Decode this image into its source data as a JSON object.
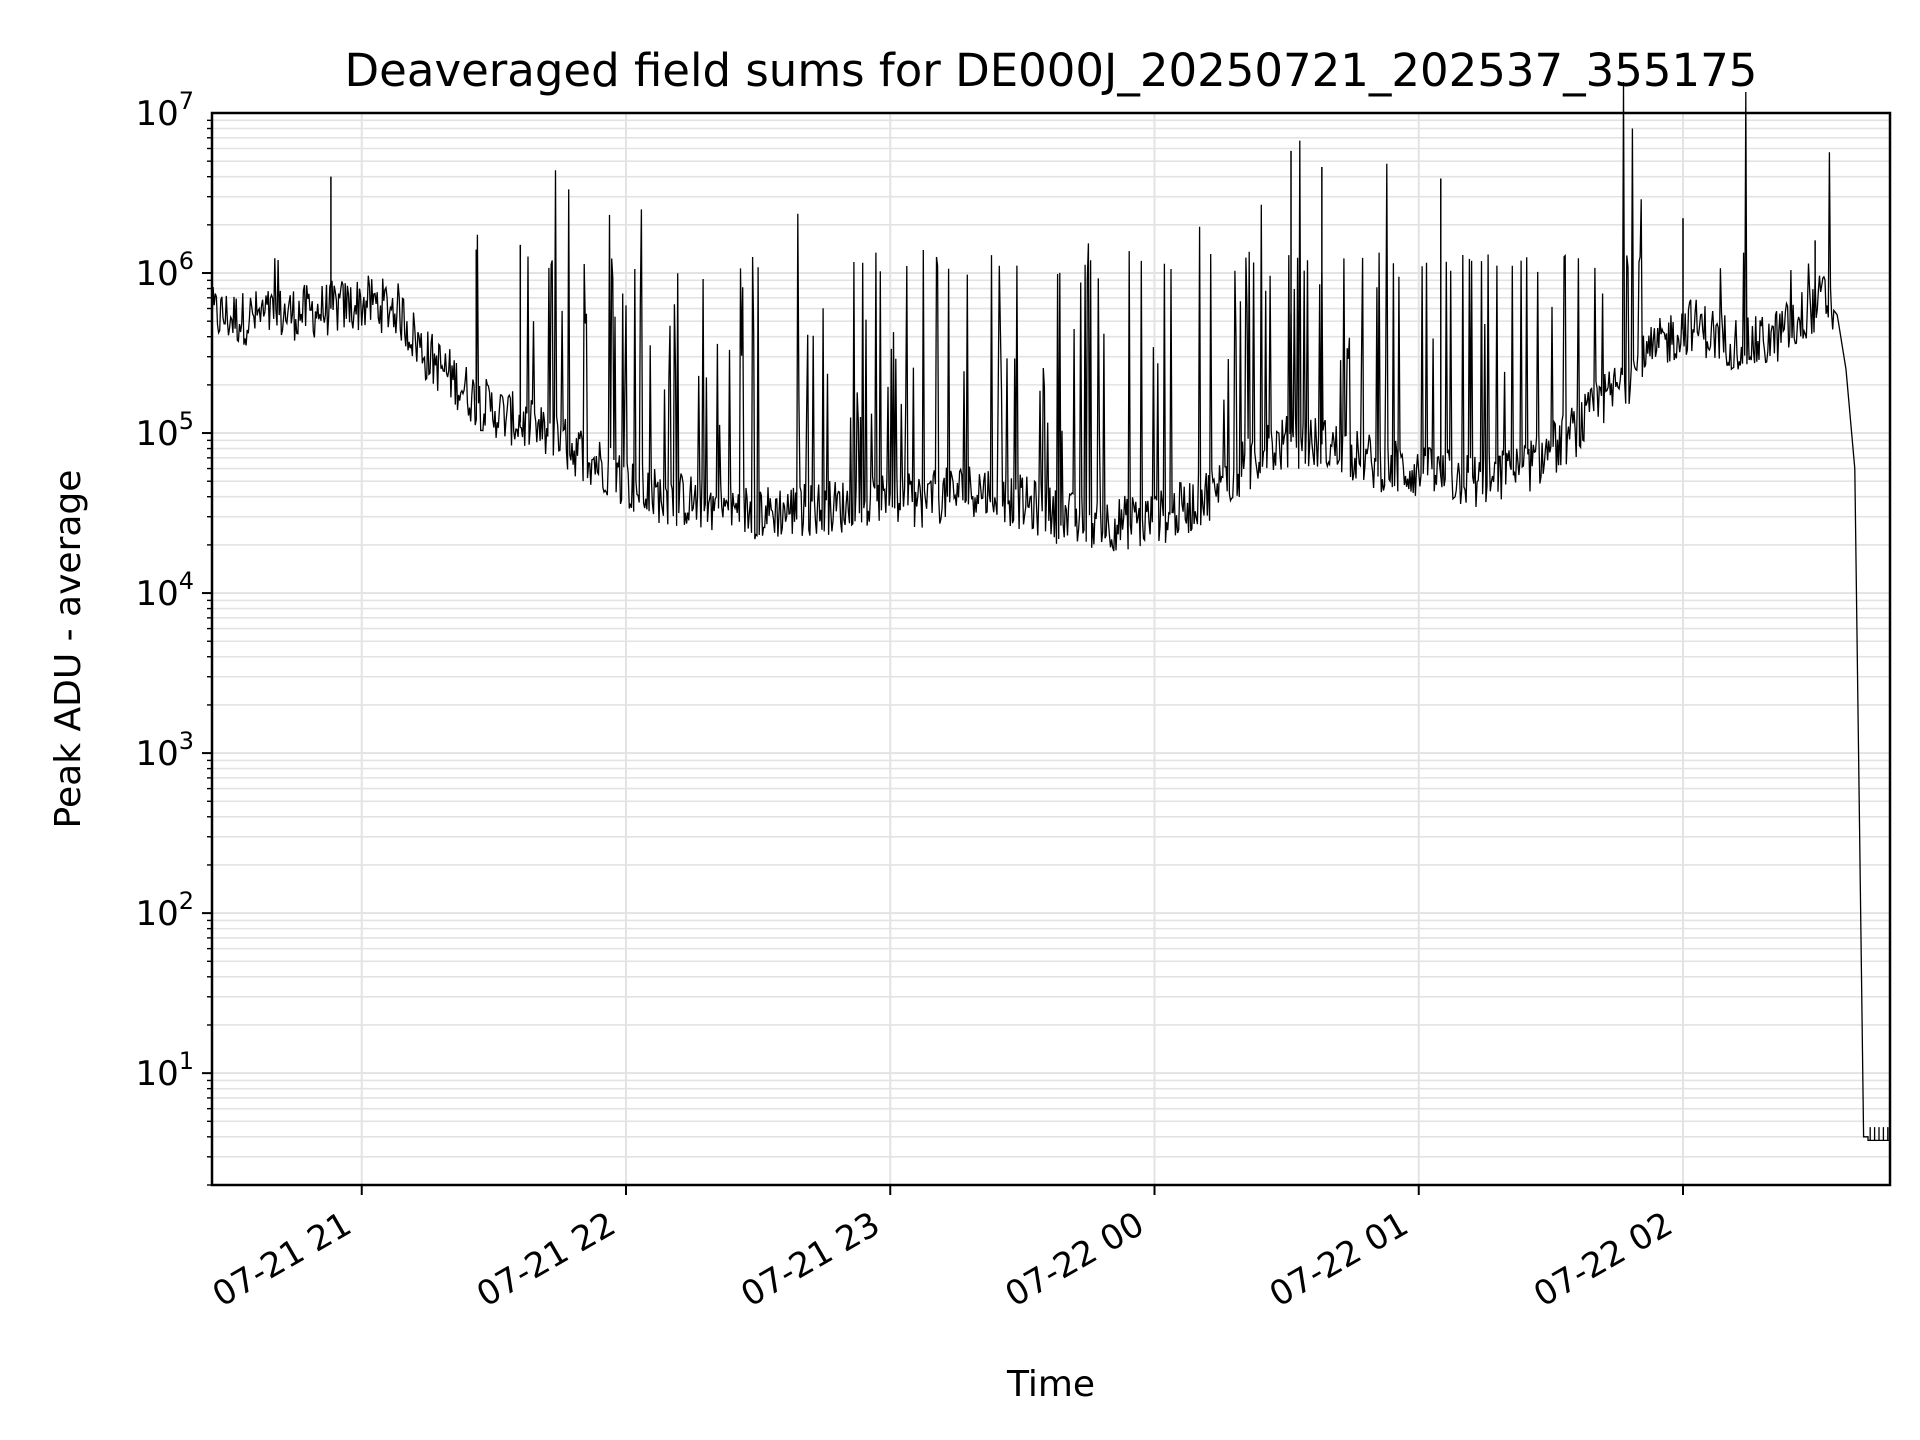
{
  "chart_data": {
    "type": "line",
    "title": "Deaveraged field sums for DE000J_20250721_202537_355175",
    "xlabel": "Time",
    "ylabel": "Peak ADU - average",
    "yscale": "log",
    "xlim": [
      "07-21 20:26",
      "07-22 02:47"
    ],
    "ylim": [
      2,
      10000000
    ],
    "grid": true,
    "line_color": "#000000",
    "grid_color": "#e3e3e3",
    "x_ticks": [
      "07-21 21",
      "07-21 22",
      "07-21 23",
      "07-22 00",
      "07-22 01",
      "07-22 02"
    ],
    "y_ticks": [
      {
        "base": "10",
        "exp": "1",
        "value": 10
      },
      {
        "base": "10",
        "exp": "2",
        "value": 100
      },
      {
        "base": "10",
        "exp": "3",
        "value": 1000
      },
      {
        "base": "10",
        "exp": "4",
        "value": 10000
      },
      {
        "base": "10",
        "exp": "5",
        "value": 100000
      },
      {
        "base": "10",
        "exp": "6",
        "value": 1000000
      },
      {
        "base": "10",
        "exp": "7",
        "value": 10000000
      }
    ],
    "series": [
      {
        "x": [
          "07-21 20:26",
          "07-21 20:32",
          "07-21 20:38",
          "07-21 20:44",
          "07-21 20:50",
          "07-21 20:56",
          "07-21 21:02",
          "07-21 21:08",
          "07-21 21:14",
          "07-21 21:20",
          "07-21 21:26",
          "07-21 21:32",
          "07-21 21:38",
          "07-21 21:44",
          "07-21 21:50",
          "07-21 21:56",
          "07-21 22:02",
          "07-21 22:08",
          "07-21 22:14",
          "07-21 22:20",
          "07-21 22:26",
          "07-21 22:32",
          "07-21 22:38",
          "07-21 22:44",
          "07-21 22:50",
          "07-21 22:56",
          "07-21 23:02",
          "07-21 23:08",
          "07-21 23:14",
          "07-21 23:20",
          "07-21 23:26",
          "07-21 23:32",
          "07-21 23:38",
          "07-21 23:44",
          "07-21 23:50",
          "07-21 23:56",
          "07-22 00:02",
          "07-22 00:08",
          "07-22 00:14",
          "07-22 00:20",
          "07-22 00:26",
          "07-22 00:32",
          "07-22 00:38",
          "07-22 00:44",
          "07-22 00:50",
          "07-22 00:56",
          "07-22 01:02",
          "07-22 01:08",
          "07-22 01:14",
          "07-22 01:20",
          "07-22 01:26",
          "07-22 01:32",
          "07-22 01:38",
          "07-22 01:44",
          "07-22 01:50",
          "07-22 01:56",
          "07-22 02:02",
          "07-22 02:08",
          "07-22 02:14",
          "07-22 02:20",
          "07-22 02:26",
          "07-22 02:32",
          "07-22 02:35",
          "07-22 02:37",
          "07-22 02:39",
          "07-22 02:40",
          "07-22 02:41",
          "07-22 02:42",
          "07-22 02:44",
          "07-22 02:47"
        ],
        "y": [
          550000,
          520000,
          540000,
          560000,
          580000,
          620000,
          650000,
          600000,
          320000,
          230000,
          160000,
          130000,
          110000,
          90000,
          75000,
          60000,
          45000,
          40000,
          38000,
          35000,
          33000,
          32000,
          33000,
          34000,
          35000,
          36000,
          37000,
          38000,
          42000,
          45000,
          40000,
          35000,
          30000,
          28000,
          27000,
          28000,
          30000,
          35000,
          45000,
          60000,
          80000,
          90000,
          85000,
          75000,
          65000,
          60000,
          55000,
          52000,
          50000,
          55000,
          65000,
          85000,
          120000,
          180000,
          260000,
          380000,
          480000,
          400000,
          350000,
          380000,
          500000,
          700000,
          550000,
          250000,
          60000,
          500,
          4,
          4,
          4,
          4
        ]
      }
    ],
    "spikes": [
      {
        "x": "07-21 20:53",
        "y": 4000000
      },
      {
        "x": "07-21 21:26",
        "y": 1400000
      },
      {
        "x": "07-21 21:36",
        "y": 1500000
      },
      {
        "x": "07-22 00:31",
        "y": 5800000
      },
      {
        "x": "07-22 00:38",
        "y": 4600000
      },
      {
        "x": "07-22 01:05",
        "y": 3900000
      },
      {
        "x": "07-22 02:00",
        "y": 2200000
      },
      {
        "x": "07-22 02:30",
        "y": 1600000
      }
    ],
    "flat_tail": {
      "from": "07-22 02:42",
      "to": "07-22 02:47",
      "low": 3.8,
      "high": 4.6
    }
  }
}
